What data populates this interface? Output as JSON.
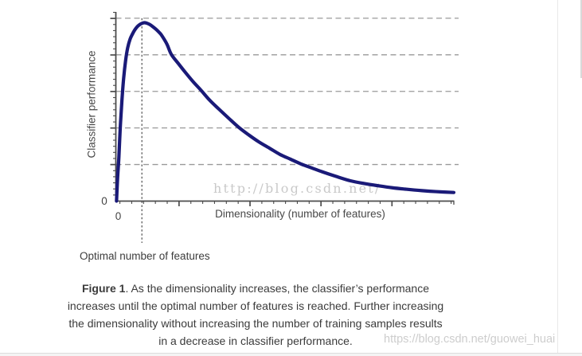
{
  "page": {
    "background": "#ffffff",
    "watermark_center": "http://blog.csdn.net/",
    "watermark_bottom_right": "https://blog.csdn.net/guowei_huai"
  },
  "figure": {
    "caption": {
      "line1_bold": "Figure 1",
      "line1_rest": ". As the dimensionality increases, the classifier’s performance",
      "line2": "increases until the optimal number of features is reached. Further increasing",
      "line3": "the dimensionality without increasing the number of training samples results",
      "line4": "in a decrease in classifier performance."
    }
  },
  "chart_data": {
    "type": "line",
    "title": "",
    "xlabel": "Dimensionality (number of features)",
    "ylabel": "Classifier performance",
    "x_origin_tick_label": "0",
    "y_origin_tick_label": "0",
    "xlim": [
      0,
      1
    ],
    "ylim": [
      0,
      1.034
    ],
    "legend": "none",
    "grid": {
      "style": "horizontal-dashed",
      "y_values": [
        0.2,
        0.4,
        0.6,
        0.8,
        1.0
      ],
      "color": "#9a9a9a"
    },
    "axis_color": "#4c4c4c",
    "optimal_marker": {
      "x": 0.077,
      "style": "vertical-dashed-line",
      "label": "Optimal number of features"
    },
    "ticks": {
      "x_first": 0.012,
      "x_step": 0.035,
      "x_count": 29,
      "x_major_indices": [
        5,
        11,
        17,
        23
      ],
      "y_first": 0.0333,
      "y_step": 0.0333,
      "y_count": 31,
      "y_major_indices": [
        5,
        11,
        17,
        23,
        29
      ]
    },
    "series": [
      {
        "name": "classifier performance vs dimensionality",
        "color": "#1a1a78",
        "points": [
          [
            0.002,
            0.0
          ],
          [
            0.005,
            0.12
          ],
          [
            0.009,
            0.24
          ],
          [
            0.013,
            0.4
          ],
          [
            0.018,
            0.55
          ],
          [
            0.023,
            0.67
          ],
          [
            0.029,
            0.77
          ],
          [
            0.035,
            0.838
          ],
          [
            0.042,
            0.885
          ],
          [
            0.049,
            0.913
          ],
          [
            0.056,
            0.936
          ],
          [
            0.064,
            0.955
          ],
          [
            0.071,
            0.966
          ],
          [
            0.078,
            0.9725
          ],
          [
            0.084,
            0.9755
          ],
          [
            0.091,
            0.9735
          ],
          [
            0.099,
            0.967
          ],
          [
            0.108,
            0.956
          ],
          [
            0.118,
            0.941
          ],
          [
            0.128,
            0.923
          ],
          [
            0.135,
            0.908
          ],
          [
            0.151,
            0.859
          ],
          [
            0.164,
            0.803
          ],
          [
            0.185,
            0.752
          ],
          [
            0.206,
            0.703
          ],
          [
            0.229,
            0.652
          ],
          [
            0.251,
            0.608
          ],
          [
            0.278,
            0.551
          ],
          [
            0.305,
            0.503
          ],
          [
            0.334,
            0.453
          ],
          [
            0.364,
            0.403
          ],
          [
            0.394,
            0.361
          ],
          [
            0.423,
            0.324
          ],
          [
            0.455,
            0.289
          ],
          [
            0.486,
            0.255
          ],
          [
            0.517,
            0.229
          ],
          [
            0.548,
            0.203
          ],
          [
            0.58,
            0.181
          ],
          [
            0.611,
            0.16
          ],
          [
            0.65,
            0.136
          ],
          [
            0.694,
            0.111
          ],
          [
            0.735,
            0.096
          ],
          [
            0.776,
            0.084
          ],
          [
            0.818,
            0.073
          ],
          [
            0.859,
            0.065
          ],
          [
            0.894,
            0.059
          ],
          [
            0.929,
            0.054
          ],
          [
            0.965,
            0.05
          ],
          [
            1.0,
            0.047
          ]
        ]
      }
    ]
  }
}
